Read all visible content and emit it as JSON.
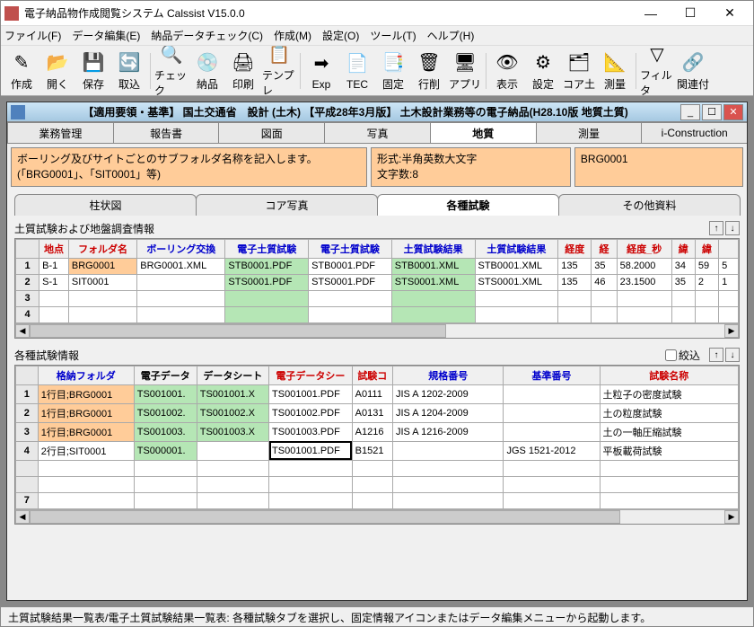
{
  "window": {
    "title": "電子納品物作成閲覧システム  Calssist V15.0.0"
  },
  "menu": [
    "ファイル(F)",
    "データ編集(E)",
    "納品データチェック(C)",
    "作成(M)",
    "設定(O)",
    "ツール(T)",
    "ヘルプ(H)"
  ],
  "toolbar": [
    {
      "label": "作成",
      "icon": "✎"
    },
    {
      "label": "開く",
      "icon": "📂"
    },
    {
      "label": "保存",
      "icon": "💾"
    },
    {
      "label": "取込",
      "icon": "🔄"
    },
    {
      "sep": true
    },
    {
      "label": "チェック",
      "icon": "🔍"
    },
    {
      "label": "納品",
      "icon": "💿"
    },
    {
      "label": "印刷",
      "icon": "🖨"
    },
    {
      "label": "テンプレ",
      "icon": "📋"
    },
    {
      "sep": true
    },
    {
      "label": "Exp",
      "icon": "➡"
    },
    {
      "label": "TEC",
      "icon": "📄"
    },
    {
      "label": "固定",
      "icon": "📑"
    },
    {
      "label": "行削",
      "icon": "🗑"
    },
    {
      "label": "アプリ",
      "icon": "🖥"
    },
    {
      "sep": true
    },
    {
      "label": "表示",
      "icon": "👁"
    },
    {
      "label": "設定",
      "icon": "⚙"
    },
    {
      "label": "コア土",
      "icon": "🗂"
    },
    {
      "label": "測量",
      "icon": "📐"
    },
    {
      "sep": true
    },
    {
      "label": "フィルタ",
      "icon": "▽"
    },
    {
      "label": "関連付",
      "icon": "🔗"
    }
  ],
  "child": {
    "title": "【適用要領・基準】 国土交通省　設計 (土木) 【平成28年3月版】 土木設計業務等の電子納品(H28.10版 地質土質)",
    "tabs": [
      "業務管理",
      "報告書",
      "図面",
      "写真",
      "地質",
      "測量",
      "i-Construction"
    ],
    "active_tab": 4,
    "info1": "ボーリング及びサイトごとのサブフォルダ名称を記入します。(「BRG0001」、「SIT0001」等)",
    "info2": "形式:半角英数大文字\n文字数:8",
    "info3": "BRG0001",
    "subtabs": [
      "柱状図",
      "コア写真",
      "各種試験",
      "その他資料"
    ],
    "active_subtab": 2
  },
  "grid1": {
    "title": "土質試験および地盤調査情報",
    "headers": [
      {
        "t": "地点",
        "c": "red"
      },
      {
        "t": "フォルダ名",
        "c": "red"
      },
      {
        "t": "ボーリング交換",
        "c": "blue"
      },
      {
        "t": "電子土質試験",
        "c": "blue"
      },
      {
        "t": "電子土質試験",
        "c": "blue"
      },
      {
        "t": "土質試験結果",
        "c": "blue"
      },
      {
        "t": "土質試験結果",
        "c": "blue"
      },
      {
        "t": "経度",
        "c": "red"
      },
      {
        "t": "経",
        "c": "red"
      },
      {
        "t": "経度_秒",
        "c": "red"
      },
      {
        "t": "緯",
        "c": "red"
      },
      {
        "t": "緯",
        "c": "red"
      },
      {
        "t": "",
        "c": "red"
      }
    ],
    "rows": [
      {
        "n": "1",
        "cells": [
          {
            "v": "B-1"
          },
          {
            "v": "BRG0001",
            "hl": "o"
          },
          {
            "v": "BRG0001.XML"
          },
          {
            "v": "STB0001.PDF",
            "hl": "g"
          },
          {
            "v": "STB0001.PDF"
          },
          {
            "v": "STB0001.XML",
            "hl": "g"
          },
          {
            "v": "STB0001.XML"
          },
          {
            "v": "135"
          },
          {
            "v": "35"
          },
          {
            "v": "58.2000"
          },
          {
            "v": "34"
          },
          {
            "v": "59"
          },
          {
            "v": "5"
          }
        ]
      },
      {
        "n": "2",
        "cells": [
          {
            "v": "S-1"
          },
          {
            "v": "SIT0001"
          },
          {
            "v": ""
          },
          {
            "v": "STS0001.PDF",
            "hl": "g"
          },
          {
            "v": "STS0001.PDF"
          },
          {
            "v": "STS0001.XML",
            "hl": "g"
          },
          {
            "v": "STS0001.XML"
          },
          {
            "v": "135"
          },
          {
            "v": "46"
          },
          {
            "v": "23.1500"
          },
          {
            "v": "35"
          },
          {
            "v": "2"
          },
          {
            "v": "1"
          }
        ]
      },
      {
        "n": "3",
        "cells": [
          {
            "v": ""
          },
          {
            "v": ""
          },
          {
            "v": ""
          },
          {
            "v": "",
            "hl": "g"
          },
          {
            "v": ""
          },
          {
            "v": "",
            "hl": "g"
          },
          {
            "v": ""
          },
          {
            "v": ""
          },
          {
            "v": ""
          },
          {
            "v": ""
          },
          {
            "v": ""
          },
          {
            "v": ""
          },
          {
            "v": ""
          }
        ]
      },
      {
        "n": "4",
        "cells": [
          {
            "v": ""
          },
          {
            "v": ""
          },
          {
            "v": ""
          },
          {
            "v": "",
            "hl": "g"
          },
          {
            "v": ""
          },
          {
            "v": "",
            "hl": "g"
          },
          {
            "v": ""
          },
          {
            "v": ""
          },
          {
            "v": ""
          },
          {
            "v": ""
          },
          {
            "v": ""
          },
          {
            "v": ""
          },
          {
            "v": ""
          }
        ]
      }
    ],
    "colw": [
      "30",
      "70",
      "90",
      "85",
      "85",
      "85",
      "85",
      "34",
      "26",
      "56",
      "24",
      "24",
      "20"
    ]
  },
  "grid2": {
    "title": "各種試験情報",
    "filter_label": "絞込",
    "headers": [
      {
        "t": "格納フォルダ",
        "c": "blue"
      },
      {
        "t": "電子データ",
        "c": ""
      },
      {
        "t": "データシート",
        "c": ""
      },
      {
        "t": "電子データシー",
        "c": "red"
      },
      {
        "t": "試験コ",
        "c": "red"
      },
      {
        "t": "規格番号",
        "c": "blue"
      },
      {
        "t": "基準番号",
        "c": "blue"
      },
      {
        "t": "試験名称",
        "c": "red"
      }
    ],
    "rows": [
      {
        "n": "1",
        "cells": [
          {
            "v": "1行目;BRG0001",
            "hl": "o"
          },
          {
            "v": "TS001001.",
            "hl": "g"
          },
          {
            "v": "TS001001.X",
            "hl": "g"
          },
          {
            "v": "TS001001.PDF"
          },
          {
            "v": "A0111"
          },
          {
            "v": "JIS A 1202-2009"
          },
          {
            "v": ""
          },
          {
            "v": "土粒子の密度試験"
          }
        ]
      },
      {
        "n": "2",
        "cells": [
          {
            "v": "1行目;BRG0001",
            "hl": "o"
          },
          {
            "v": "TS001002.",
            "hl": "g"
          },
          {
            "v": "TS001002.X",
            "hl": "g"
          },
          {
            "v": "TS001002.PDF"
          },
          {
            "v": "A0131"
          },
          {
            "v": "JIS A 1204-2009"
          },
          {
            "v": ""
          },
          {
            "v": "土の粒度試験"
          }
        ]
      },
      {
        "n": "3",
        "cells": [
          {
            "v": "1行目;BRG0001",
            "hl": "o"
          },
          {
            "v": "TS001003.",
            "hl": "g"
          },
          {
            "v": "TS001003.X",
            "hl": "g"
          },
          {
            "v": "TS001003.PDF"
          },
          {
            "v": "A1216"
          },
          {
            "v": "JIS A 1216-2009"
          },
          {
            "v": ""
          },
          {
            "v": "土の一軸圧縮試験"
          }
        ]
      },
      {
        "n": "4",
        "cells": [
          {
            "v": "2行目;SIT0001"
          },
          {
            "v": "TS000001.",
            "hl": "g"
          },
          {
            "v": ""
          },
          {
            "v": "TS001001.PDF",
            "sel": true
          },
          {
            "v": "B1521"
          },
          {
            "v": ""
          },
          {
            "v": "JGS 1521-2012"
          },
          {
            "v": "平板載荷試験"
          }
        ]
      },
      {
        "n": "",
        "cells": [
          {
            "v": ""
          },
          {
            "v": ""
          },
          {
            "v": ""
          },
          {
            "v": ""
          },
          {
            "v": ""
          },
          {
            "v": ""
          },
          {
            "v": ""
          },
          {
            "v": ""
          }
        ]
      },
      {
        "n": "",
        "cells": [
          {
            "v": ""
          },
          {
            "v": ""
          },
          {
            "v": ""
          },
          {
            "v": ""
          },
          {
            "v": ""
          },
          {
            "v": ""
          },
          {
            "v": ""
          },
          {
            "v": ""
          }
        ]
      },
      {
        "n": "7",
        "cells": [
          {
            "v": ""
          },
          {
            "v": ""
          },
          {
            "v": ""
          },
          {
            "v": ""
          },
          {
            "v": ""
          },
          {
            "v": ""
          },
          {
            "v": ""
          },
          {
            "v": ""
          }
        ]
      }
    ],
    "colw": [
      "104",
      "68",
      "78",
      "90",
      "44",
      "120",
      "104",
      "150"
    ]
  },
  "status": "土質試験結果一覧表/電子土質試験結果一覧表: 各種試験タブを選択し、固定情報アイコンまたはデータ編集メニューから起動します。"
}
